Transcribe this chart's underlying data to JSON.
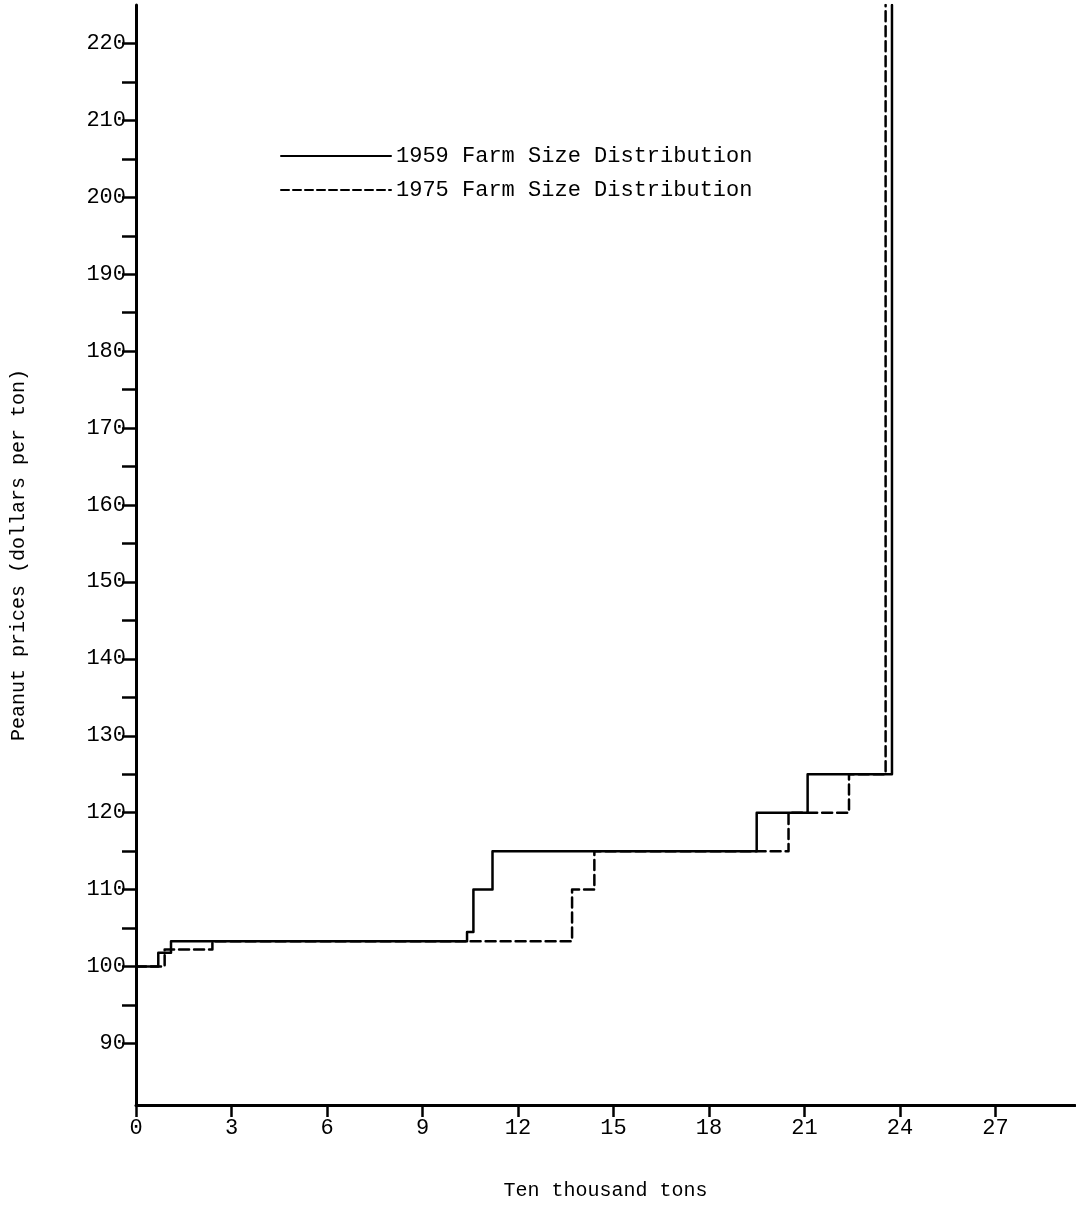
{
  "chart_data": {
    "type": "step",
    "xlabel": "Ten thousand tons",
    "ylabel": "Peanut prices (dollars per ton)",
    "series": [
      {
        "name": "1959 Farm Size Distribution",
        "color": "#000000",
        "line_style": "solid",
        "x": [
          0,
          0.7,
          1.1,
          10.4,
          10.6,
          11.2,
          19.5,
          21.1,
          23.75
        ],
        "values": [
          100,
          101.8,
          103.3,
          104.5,
          110,
          115,
          120,
          125,
          225
        ]
      },
      {
        "name": "1975 Farm Size Distribution",
        "color": "#000000",
        "line_style": "dashed",
        "x": [
          0,
          0.9,
          2.4,
          13.7,
          14.4,
          20.5,
          22.4,
          23.55
        ],
        "values": [
          100,
          102.2,
          103.3,
          110,
          115,
          120,
          125,
          225
        ]
      }
    ],
    "xlim": [
      0,
      29.5
    ],
    "xticks": [
      0,
      3,
      6,
      9,
      12,
      15,
      18,
      21,
      24,
      27
    ],
    "ylim": [
      82,
      225
    ],
    "yticks": [
      90,
      {
        "value": 95,
        "label": null
      },
      100,
      {
        "value": 105,
        "label": null
      },
      110,
      {
        "value": 115,
        "label": null
      },
      120,
      {
        "value": 125,
        "label": null
      },
      130,
      {
        "value": 135,
        "label": null
      },
      140,
      {
        "value": 145,
        "label": null
      },
      150,
      {
        "value": 155,
        "label": null
      },
      160,
      {
        "value": 165,
        "label": null
      },
      170,
      {
        "value": 175,
        "label": null
      },
      180,
      {
        "value": 185,
        "label": null
      },
      190,
      {
        "value": 195,
        "label": null
      },
      200,
      {
        "value": 205,
        "label": null
      },
      210,
      {
        "value": 215,
        "label": null
      },
      220
    ],
    "grid": false,
    "legend": "top",
    "marker": "none"
  }
}
